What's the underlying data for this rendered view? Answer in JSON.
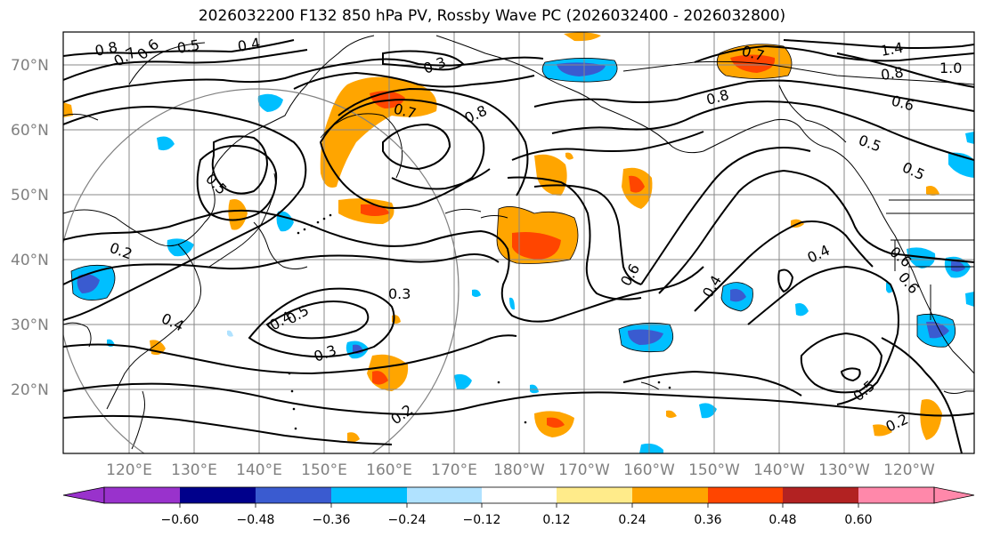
{
  "title": "2026032200 F132 850 hPa PV, Rossby Wave PC (2026032400 - 2026032800)",
  "map": {
    "lat_labels": [
      "70°N",
      "60°N",
      "50°N",
      "40°N",
      "30°N",
      "20°N"
    ],
    "lon_labels": [
      "120°E",
      "130°E",
      "140°E",
      "150°E",
      "160°E",
      "170°E",
      "180°W",
      "170°W",
      "160°W",
      "150°W",
      "140°W",
      "130°W",
      "120°W"
    ],
    "contour_labels": [
      "0.8",
      "0.7",
      "0.6",
      "0.5",
      "0.4",
      "0.3",
      "0.7",
      "0.8",
      "1.4",
      "0.8",
      "1.0",
      "0.6",
      "0.7",
      "0.5",
      "0.8",
      "0.5",
      "0.6",
      "0.4",
      "0.4",
      "0.6",
      "0.2",
      "0.4",
      "0.3",
      "0.4",
      "0.5",
      "0.3",
      "0.2",
      "0.5",
      "0.2",
      "0.6",
      "0.5"
    ]
  },
  "colorbar": {
    "ticks": [
      "−0.60",
      "−0.48",
      "−0.36",
      "−0.24",
      "−0.12",
      "0.12",
      "0.24",
      "0.36",
      "0.48",
      "0.60"
    ],
    "colors": [
      "#9932cc",
      "#00008b",
      "#3a5bd0",
      "#00bfff",
      "#b0e2ff",
      "#ffffff",
      "#ffeb8a",
      "#ffa500",
      "#ff4500",
      "#b22222",
      "#ff88aa"
    ]
  }
}
